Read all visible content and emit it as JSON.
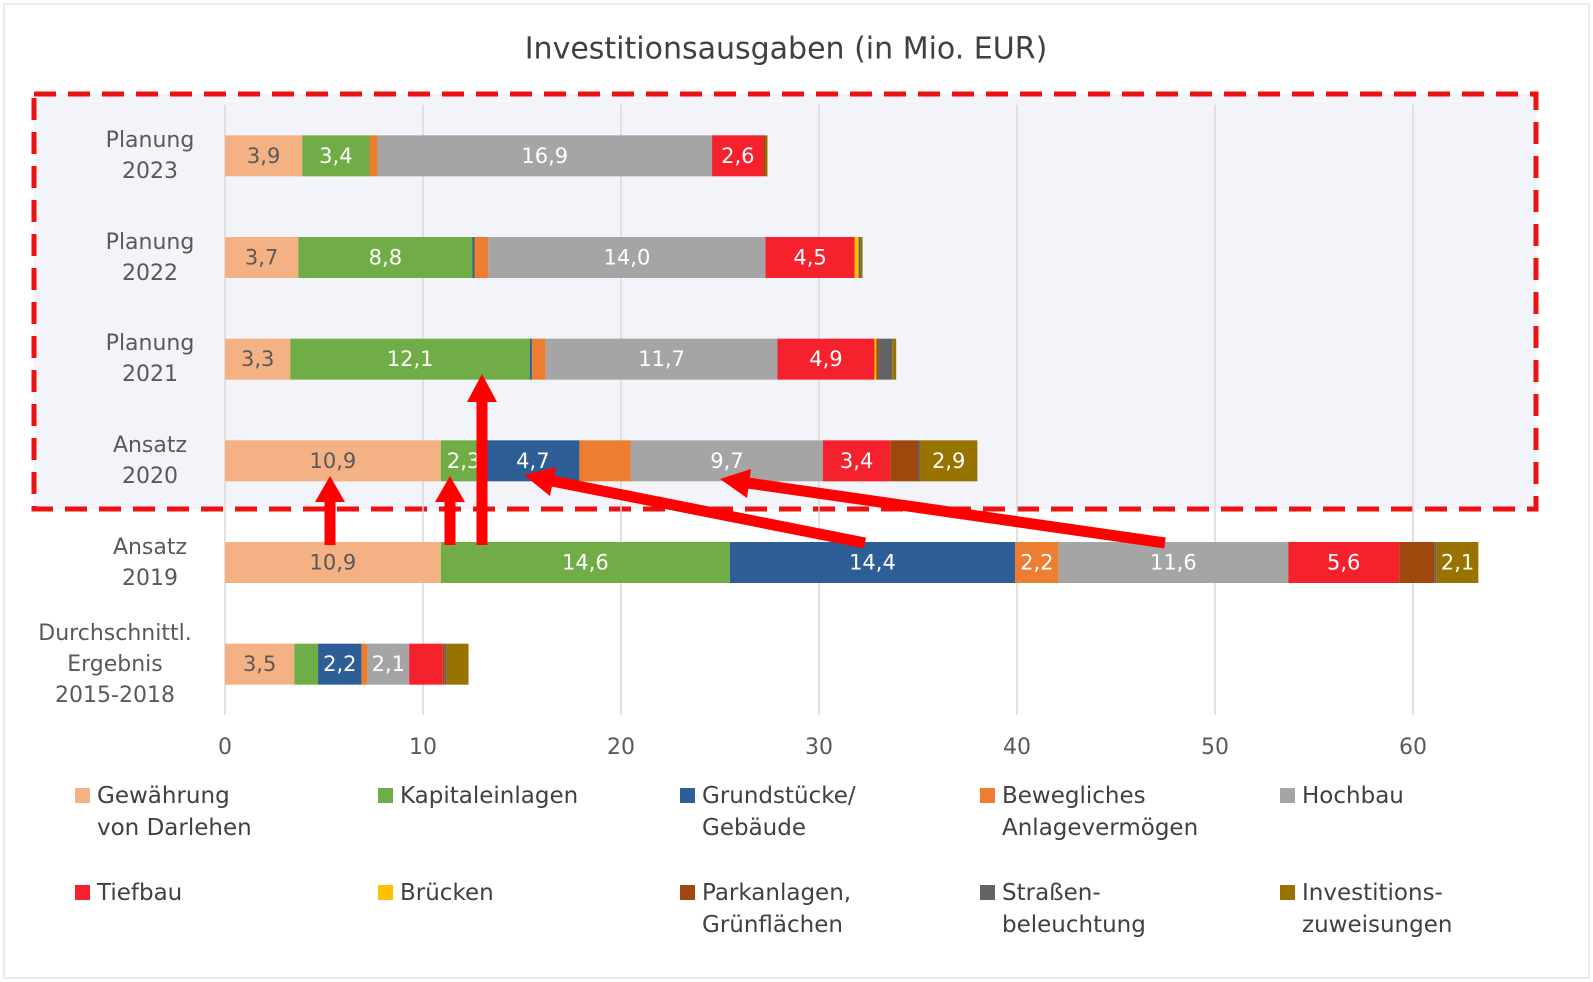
{
  "chart_data": {
    "type": "stacked_bar_horizontal",
    "title": "Investitionsausgaben (in Mio. EUR)",
    "categories": [
      "Planung\n2023",
      "Planung\n2022",
      "Planung\n2021",
      "Ansatz\n2020",
      "Ansatz\n2019",
      "Durchschnittl.\nErgebnis\n2015-2018"
    ],
    "xlim": [
      0,
      65
    ],
    "xticks": [
      0,
      10,
      20,
      30,
      40,
      50,
      60
    ],
    "grid": true,
    "legend": "bottom",
    "series": [
      {
        "name": "Gewährung von Darlehen",
        "color": "#f4b183",
        "values": [
          3.9,
          3.7,
          3.3,
          10.9,
          10.9,
          3.5
        ],
        "value_labels": [
          "3,9",
          "3,7",
          "3,3",
          "10,9",
          "10,9",
          "3,5"
        ]
      },
      {
        "name": "Kapitaleinlagen",
        "color": "#70ad47",
        "values": [
          3.4,
          8.8,
          12.1,
          2.3,
          14.6,
          1.2
        ],
        "value_labels": [
          "3,4",
          "8,8",
          "12,1",
          "2,3",
          "14,6",
          null
        ]
      },
      {
        "name": "Grundstücke/ Gebäude",
        "color": "#2e5e96",
        "values": [
          0,
          0.1,
          0.1,
          4.7,
          14.4,
          2.2
        ],
        "value_labels": [
          null,
          null,
          null,
          "4,7",
          "14,4",
          "2,2"
        ]
      },
      {
        "name": "Bewegliches Anlagevermögen",
        "color": "#ed7d31",
        "values": [
          0.4,
          0.7,
          0.7,
          2.6,
          2.2,
          0.3
        ],
        "value_labels": [
          null,
          null,
          null,
          null,
          "2,2",
          null
        ]
      },
      {
        "name": "Hochbau",
        "color": "#a5a5a5",
        "values": [
          16.9,
          14.0,
          11.7,
          9.7,
          11.6,
          2.1
        ],
        "value_labels": [
          "16,9",
          "14,0",
          "11,7",
          "9,7",
          "11,6",
          "2,1"
        ]
      },
      {
        "name": "Tiefbau",
        "color": "#f5222d",
        "values": [
          2.6,
          4.5,
          4.9,
          3.4,
          5.6,
          1.7
        ],
        "value_labels": [
          "2,6",
          "4,5",
          "4,9",
          "3,4",
          "5,6",
          null
        ]
      },
      {
        "name": "Brücken",
        "color": "#ffc000",
        "values": [
          0,
          0.2,
          0.1,
          0,
          0,
          0
        ],
        "value_labels": [
          null,
          null,
          null,
          null,
          null,
          null
        ]
      },
      {
        "name": "Parkanlagen, Grünflächen",
        "color": "#9e480e",
        "values": [
          0.1,
          0,
          0.1,
          1.4,
          1.8,
          0.1
        ],
        "value_labels": [
          null,
          null,
          null,
          null,
          null,
          null
        ]
      },
      {
        "name": "Straßen-beleuchtung",
        "color": "#636363",
        "values": [
          0,
          0.1,
          0.7,
          0.1,
          0.1,
          0.1
        ],
        "value_labels": [
          null,
          null,
          null,
          null,
          null,
          null
        ]
      },
      {
        "name": "Investitions-zuweisungen",
        "color": "#997300",
        "values": [
          0.1,
          0.1,
          0.2,
          2.9,
          2.1,
          1.1
        ],
        "value_labels": [
          null,
          null,
          null,
          "2,9",
          "2,1",
          null
        ]
      }
    ]
  }
}
